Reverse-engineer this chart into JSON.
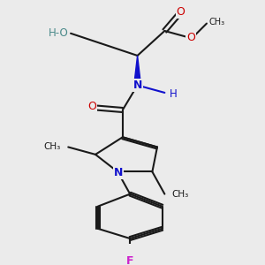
{
  "bg_color": "#ebebeb",
  "line_color": "#1a1a1a",
  "lw": 1.5,
  "colors": {
    "O": "#cc0000",
    "N": "#1010cc",
    "F": "#cc22cc",
    "HO": "#4a8a8a",
    "NH": "#1010cc",
    "C": "#1a1a1a"
  },
  "xlim": [
    0.05,
    0.95
  ],
  "ylim": [
    0.02,
    1.0
  ]
}
